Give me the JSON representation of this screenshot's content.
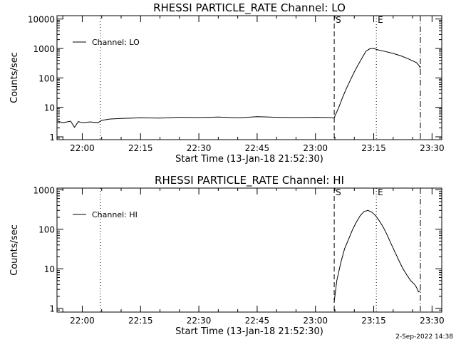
{
  "footer": {
    "stamp": "2-Sep-2022 14:38"
  },
  "chart_data": [
    {
      "type": "line",
      "title": "RHESSI PARTICLE_RATE Channel: LO",
      "xlabel": "Start Time (13-Jan-18 21:52:30)",
      "ylabel": "Counts/sec",
      "yscale": "log",
      "xlim": [
        "21:53:30",
        "23:32:30"
      ],
      "ylim": [
        0.8,
        13000
      ],
      "xticks": [
        "22:00",
        "22:15",
        "22:30",
        "22:45",
        "23:00",
        "23:15",
        "23:30"
      ],
      "yticks": [
        "1",
        "10",
        "100",
        "1000",
        "10000"
      ],
      "legend": {
        "position": "top-left",
        "entries": [
          "Channel: LO"
        ]
      },
      "markers": [
        {
          "label": "S",
          "time": "23:04:50",
          "style": "dashed"
        },
        {
          "label": "E",
          "time": "23:15:40",
          "style": "dotted"
        }
      ],
      "vlines": [
        {
          "time": "22:04:40",
          "style": "dotted"
        },
        {
          "time": "23:27:00",
          "style": "dashdot"
        }
      ],
      "series": [
        {
          "name": "Channel: LO",
          "x": [
            "21:53:30",
            "21:55:00",
            "21:57:00",
            "21:58:00",
            "21:59:00",
            "22:00:00",
            "22:02:00",
            "22:04:00",
            "22:05:00",
            "22:07:00",
            "22:10:00",
            "22:15:00",
            "22:20:00",
            "22:25:00",
            "22:30:00",
            "22:35:00",
            "22:40:00",
            "22:45:00",
            "22:50:00",
            "22:55:00",
            "23:00:00",
            "23:04:00",
            "23:04:50",
            "23:05:00",
            "23:06:00",
            "23:07:00",
            "23:08:00",
            "23:09:00",
            "23:10:00",
            "23:11:00",
            "23:12:00",
            "23:13:00",
            "23:14:00",
            "23:15:00",
            "23:16:00",
            "23:18:00",
            "23:20:00",
            "23:22:00",
            "23:24:00",
            "23:26:00",
            "23:26:40",
            "23:27:00"
          ],
          "y": [
            3.5,
            3.0,
            3.4,
            2.1,
            3.3,
            3.0,
            3.2,
            3.0,
            3.6,
            4.0,
            4.2,
            4.4,
            4.3,
            4.6,
            4.5,
            4.7,
            4.4,
            4.8,
            4.6,
            4.5,
            4.6,
            4.5,
            4.3,
            5,
            10,
            22,
            45,
            85,
            160,
            280,
            480,
            800,
            980,
            1000,
            900,
            790,
            680,
            560,
            440,
            330,
            260,
            210
          ]
        }
      ]
    },
    {
      "type": "line",
      "title": "RHESSI PARTICLE_RATE Channel: HI",
      "xlabel": "Start Time (13-Jan-18 21:52:30)",
      "ylabel": "Counts/sec",
      "yscale": "log",
      "xlim": [
        "21:53:30",
        "23:32:30"
      ],
      "ylim": [
        0.8,
        1100
      ],
      "xticks": [
        "22:00",
        "22:15",
        "22:30",
        "22:45",
        "23:00",
        "23:15",
        "23:30"
      ],
      "yticks": [
        "1",
        "10",
        "100",
        "1000"
      ],
      "legend": {
        "position": "top-left",
        "entries": [
          "Channel: HI"
        ]
      },
      "markers": [
        {
          "label": "S",
          "time": "23:04:50",
          "style": "dashed"
        },
        {
          "label": "E",
          "time": "23:15:40",
          "style": "dotted"
        }
      ],
      "vlines": [
        {
          "time": "22:04:40",
          "style": "dotted"
        },
        {
          "time": "23:27:00",
          "style": "dashdot"
        }
      ],
      "series": [
        {
          "name": "Channel: HI",
          "x": [
            "23:04:50",
            "23:05:30",
            "23:06:30",
            "23:07:30",
            "23:08:30",
            "23:09:30",
            "23:10:30",
            "23:11:30",
            "23:12:30",
            "23:13:30",
            "23:14:30",
            "23:15:30",
            "23:16:30",
            "23:17:30",
            "23:18:30",
            "23:19:30",
            "23:20:30",
            "23:21:30",
            "23:22:30",
            "23:23:30",
            "23:24:30",
            "23:25:30",
            "23:26:00",
            "23:26:30",
            "23:27:00"
          ],
          "y": [
            1.5,
            5,
            14,
            32,
            55,
            95,
            150,
            220,
            280,
            300,
            270,
            220,
            160,
            110,
            70,
            42,
            26,
            16,
            10,
            7,
            5,
            4,
            3.4,
            2.6,
            2.8
          ]
        }
      ]
    }
  ]
}
